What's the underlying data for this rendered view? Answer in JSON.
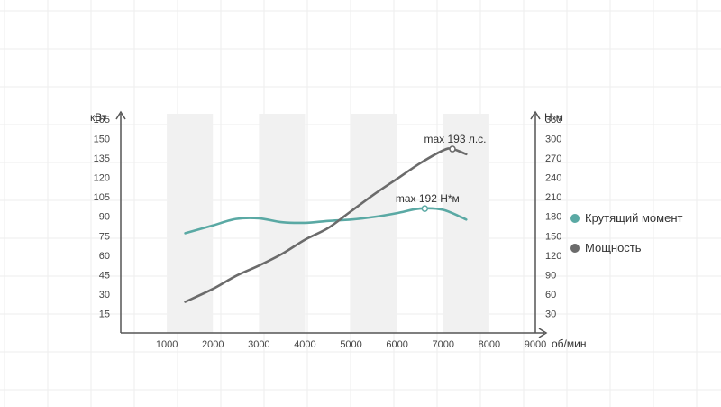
{
  "chart_data": {
    "type": "line",
    "left_axis_unit": "кВт",
    "right_axis_unit": "Н·м",
    "x_axis_unit": "об/мин",
    "x_ticks": [
      1000,
      2000,
      3000,
      4000,
      5000,
      6000,
      7000,
      8000,
      9000
    ],
    "left_ticks": [
      15,
      30,
      45,
      60,
      75,
      90,
      105,
      120,
      135,
      150,
      165
    ],
    "right_ticks": [
      30,
      60,
      90,
      120,
      150,
      180,
      210,
      240,
      270,
      300,
      330
    ],
    "xlim": [
      0,
      9000
    ],
    "ylim_left": [
      0,
      165
    ],
    "ylim_right": [
      0,
      330
    ],
    "grid": true,
    "legend_position": "right",
    "series": [
      {
        "name": "Крутящий момент",
        "axis": "right",
        "color": "#5aa9a4",
        "x": [
          1400,
          2000,
          2500,
          3000,
          3500,
          4000,
          4500,
          5000,
          5500,
          6000,
          6500,
          7000,
          7500
        ],
        "values": [
          154,
          166,
          176,
          177,
          171,
          170,
          173,
          175,
          179,
          185,
          192,
          190,
          175
        ]
      },
      {
        "name": "Мощность",
        "axis": "left",
        "color": "#6b6b6b",
        "x": [
          1400,
          2000,
          2500,
          3000,
          3500,
          4000,
          4500,
          5000,
          5500,
          6000,
          6500,
          7000,
          7200,
          7500
        ],
        "values": [
          24,
          34,
          44,
          52,
          61,
          72,
          81,
          94,
          107,
          119,
          131,
          141,
          142,
          138
        ]
      }
    ],
    "annotations": [
      {
        "text": "max 193 л.с.",
        "series": 1,
        "x": 7200,
        "y": 142
      },
      {
        "text": "max 192 Н*м",
        "series": 0,
        "x": 6600,
        "y": 192
      }
    ],
    "shaded_bands": [
      [
        1000,
        2000
      ],
      [
        3000,
        4000
      ],
      [
        5000,
        6000
      ],
      [
        7000,
        8000
      ]
    ]
  }
}
